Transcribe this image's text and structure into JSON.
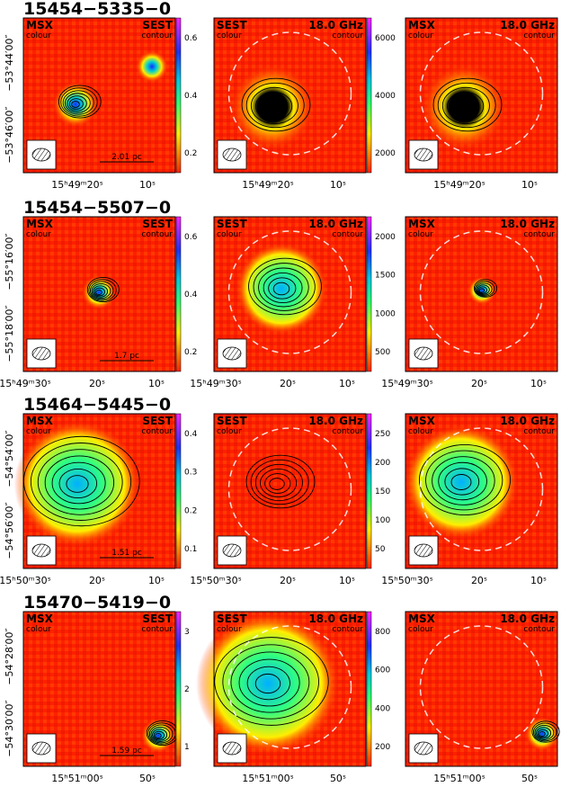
{
  "rows": [
    {
      "title": "15454−5335−0",
      "dec_labels": [
        "−53°44′00″",
        "−53°46′00″"
      ],
      "ra_labels": [
        [
          "15ʰ49ᵐ20ˢ",
          "10ˢ"
        ],
        [
          "15ʰ49ᵐ20ˢ",
          "10ˢ"
        ],
        [
          "15ʰ49ᵐ20ˢ",
          "10ˢ"
        ]
      ],
      "scale_bar": "2.01 pc",
      "panels": [
        {
          "left_label": "MSX",
          "left_sub": "colour",
          "right_label": "SEST",
          "right_sub": "contour",
          "colorbar": [
            "0.6",
            "0.4",
            "0.2"
          ]
        },
        {
          "left_label": "SEST",
          "left_sub": "colour",
          "right_label": "18.0 GHz",
          "right_sub": "contour",
          "colorbar": [
            "6000",
            "4000",
            "2000"
          ]
        },
        {
          "left_label": "MSX",
          "left_sub": "colour",
          "right_label": "18.0 GHz",
          "right_sub": "contour",
          "colorbar": []
        }
      ]
    },
    {
      "title": "15454−5507−0",
      "dec_labels": [
        "−55°16′00″",
        "−55°18′00″"
      ],
      "ra_labels": [
        [
          "15ʰ49ᵐ30ˢ",
          "20ˢ",
          "10ˢ"
        ],
        [
          "15ʰ49ᵐ30ˢ",
          "20ˢ",
          "10ˢ"
        ],
        [
          "15ʰ49ᵐ30ˢ",
          "20ˢ",
          "10ˢ"
        ]
      ],
      "scale_bar": "1.7 pc",
      "panels": [
        {
          "left_label": "MSX",
          "left_sub": "colour",
          "right_label": "SEST",
          "right_sub": "contour",
          "colorbar": [
            "0.6",
            "0.4",
            "0.2"
          ]
        },
        {
          "left_label": "SEST",
          "left_sub": "colour",
          "right_label": "18.0 GHz",
          "right_sub": "contour",
          "colorbar": [
            "2000",
            "1500",
            "1000",
            "500"
          ]
        },
        {
          "left_label": "MSX",
          "left_sub": "colour",
          "right_label": "18.0 GHz",
          "right_sub": "contour",
          "colorbar": []
        }
      ]
    },
    {
      "title": "15464−5445−0",
      "dec_labels": [
        "−54°54′00″",
        "−54°56′00″"
      ],
      "ra_labels": [
        [
          "15ʰ50ᵐ30ˢ",
          "20ˢ",
          "10ˢ"
        ],
        [
          "15ʰ50ᵐ30ˢ",
          "20ˢ",
          "10ˢ"
        ],
        [
          "15ʰ50ᵐ30ˢ",
          "20ˢ",
          "10ˢ"
        ]
      ],
      "scale_bar": "1.51 pc",
      "panels": [
        {
          "left_label": "MSX",
          "left_sub": "colour",
          "right_label": "SEST",
          "right_sub": "contour",
          "colorbar": [
            "0.4",
            "0.3",
            "0.2",
            "0.1"
          ]
        },
        {
          "left_label": "SEST",
          "left_sub": "colour",
          "right_label": "18.0 GHz",
          "right_sub": "contour",
          "colorbar": [
            "250",
            "200",
            "150",
            "100",
            "50"
          ]
        },
        {
          "left_label": "MSX",
          "left_sub": "colour",
          "right_label": "18.0 GHz",
          "right_sub": "contour",
          "colorbar": []
        }
      ]
    },
    {
      "title": "15470−5419−0",
      "dec_labels": [
        "−54°28′00″",
        "−54°30′00″"
      ],
      "ra_labels": [
        [
          "15ʰ51ᵐ00ˢ",
          "50ˢ"
        ],
        [
          "15ʰ51ᵐ00ˢ",
          "50ˢ"
        ],
        [
          "15ʰ51ᵐ00ˢ",
          "50ˢ"
        ]
      ],
      "scale_bar": "1.59 pc",
      "panels": [
        {
          "left_label": "MSX",
          "left_sub": "colour",
          "right_label": "SEST",
          "right_sub": "contour",
          "colorbar": [
            "3",
            "2",
            "1"
          ]
        },
        {
          "left_label": "SEST",
          "left_sub": "colour",
          "right_label": "18.0 GHz",
          "right_sub": "contour",
          "colorbar": [
            "800",
            "600",
            "400",
            "200"
          ]
        },
        {
          "left_label": "MSX",
          "left_sub": "colour",
          "right_label": "18.0 GHz",
          "right_sub": "contour",
          "colorbar": []
        }
      ]
    }
  ],
  "colors": {
    "background_map": "#ff2200",
    "blob_mid": "#ffee00",
    "blob_high": "#00e0c0",
    "peak": "#1030ff",
    "contour": "#000000",
    "beam_circle": "#ffffff"
  }
}
